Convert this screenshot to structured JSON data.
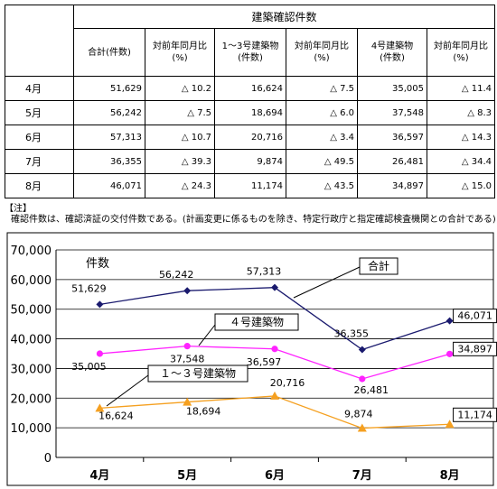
{
  "table": {
    "title": "建築確認件数",
    "headers": [
      "合計(件数)",
      "対前年同月比\n(%)",
      "1～3号建築物\n(件数)",
      "対前年同月比\n(%)",
      "4号建築物\n(件数)",
      "対前年同月比\n(%)"
    ],
    "rows": [
      {
        "month": "4月",
        "cells": [
          "51,629",
          "△ 10.2",
          "16,624",
          "△ 7.5",
          "35,005",
          "△ 11.4"
        ]
      },
      {
        "month": "5月",
        "cells": [
          "56,242",
          "△ 7.5",
          "18,694",
          "△ 6.0",
          "37,548",
          "△ 8.3"
        ]
      },
      {
        "month": "6月",
        "cells": [
          "57,313",
          "△ 10.7",
          "20,716",
          "△ 3.4",
          "36,597",
          "△ 14.3"
        ]
      },
      {
        "month": "7月",
        "cells": [
          "36,355",
          "△ 39.3",
          "9,874",
          "△ 49.5",
          "26,481",
          "△ 34.4"
        ]
      },
      {
        "month": "8月",
        "cells": [
          "46,071",
          "△ 24.3",
          "11,174",
          "△ 43.5",
          "34,897",
          "△ 15.0"
        ]
      }
    ]
  },
  "note": {
    "heading": "【注】",
    "text": "確認件数は、確認済証の交付件数である。(計画変更に係るものを除き、特定行政庁と指定確認検査機関との合計である)"
  },
  "chart_data": {
    "type": "line",
    "categories": [
      "4月",
      "5月",
      "6月",
      "7月",
      "8月"
    ],
    "ylabel": "件数",
    "ylim": [
      0,
      70000
    ],
    "yticks": [
      "0",
      "10,000",
      "20,000",
      "30,000",
      "40,000",
      "50,000",
      "60,000",
      "70,000"
    ],
    "grid": true,
    "series": [
      {
        "name": "合計",
        "values": [
          51629,
          56242,
          57313,
          36355,
          46071
        ],
        "labels": [
          "51,629",
          "56,242",
          "57,313",
          "36,355",
          "46,071"
        ],
        "color": "#1a1a6e",
        "marker": "diamond"
      },
      {
        "name": "４号建築物",
        "values": [
          35005,
          37548,
          36597,
          26481,
          34897
        ],
        "labels": [
          "35,005",
          "37,548",
          "36,597",
          "26,481",
          "34,897"
        ],
        "color": "#ff22ff",
        "marker": "circle"
      },
      {
        "name": "１～３号建築物",
        "values": [
          16624,
          18694,
          20716,
          9874,
          11174
        ],
        "labels": [
          "16,624",
          "18,694",
          "20,716",
          "9,874",
          "11,174"
        ],
        "color": "#f5a020",
        "marker": "triangle"
      }
    ]
  }
}
